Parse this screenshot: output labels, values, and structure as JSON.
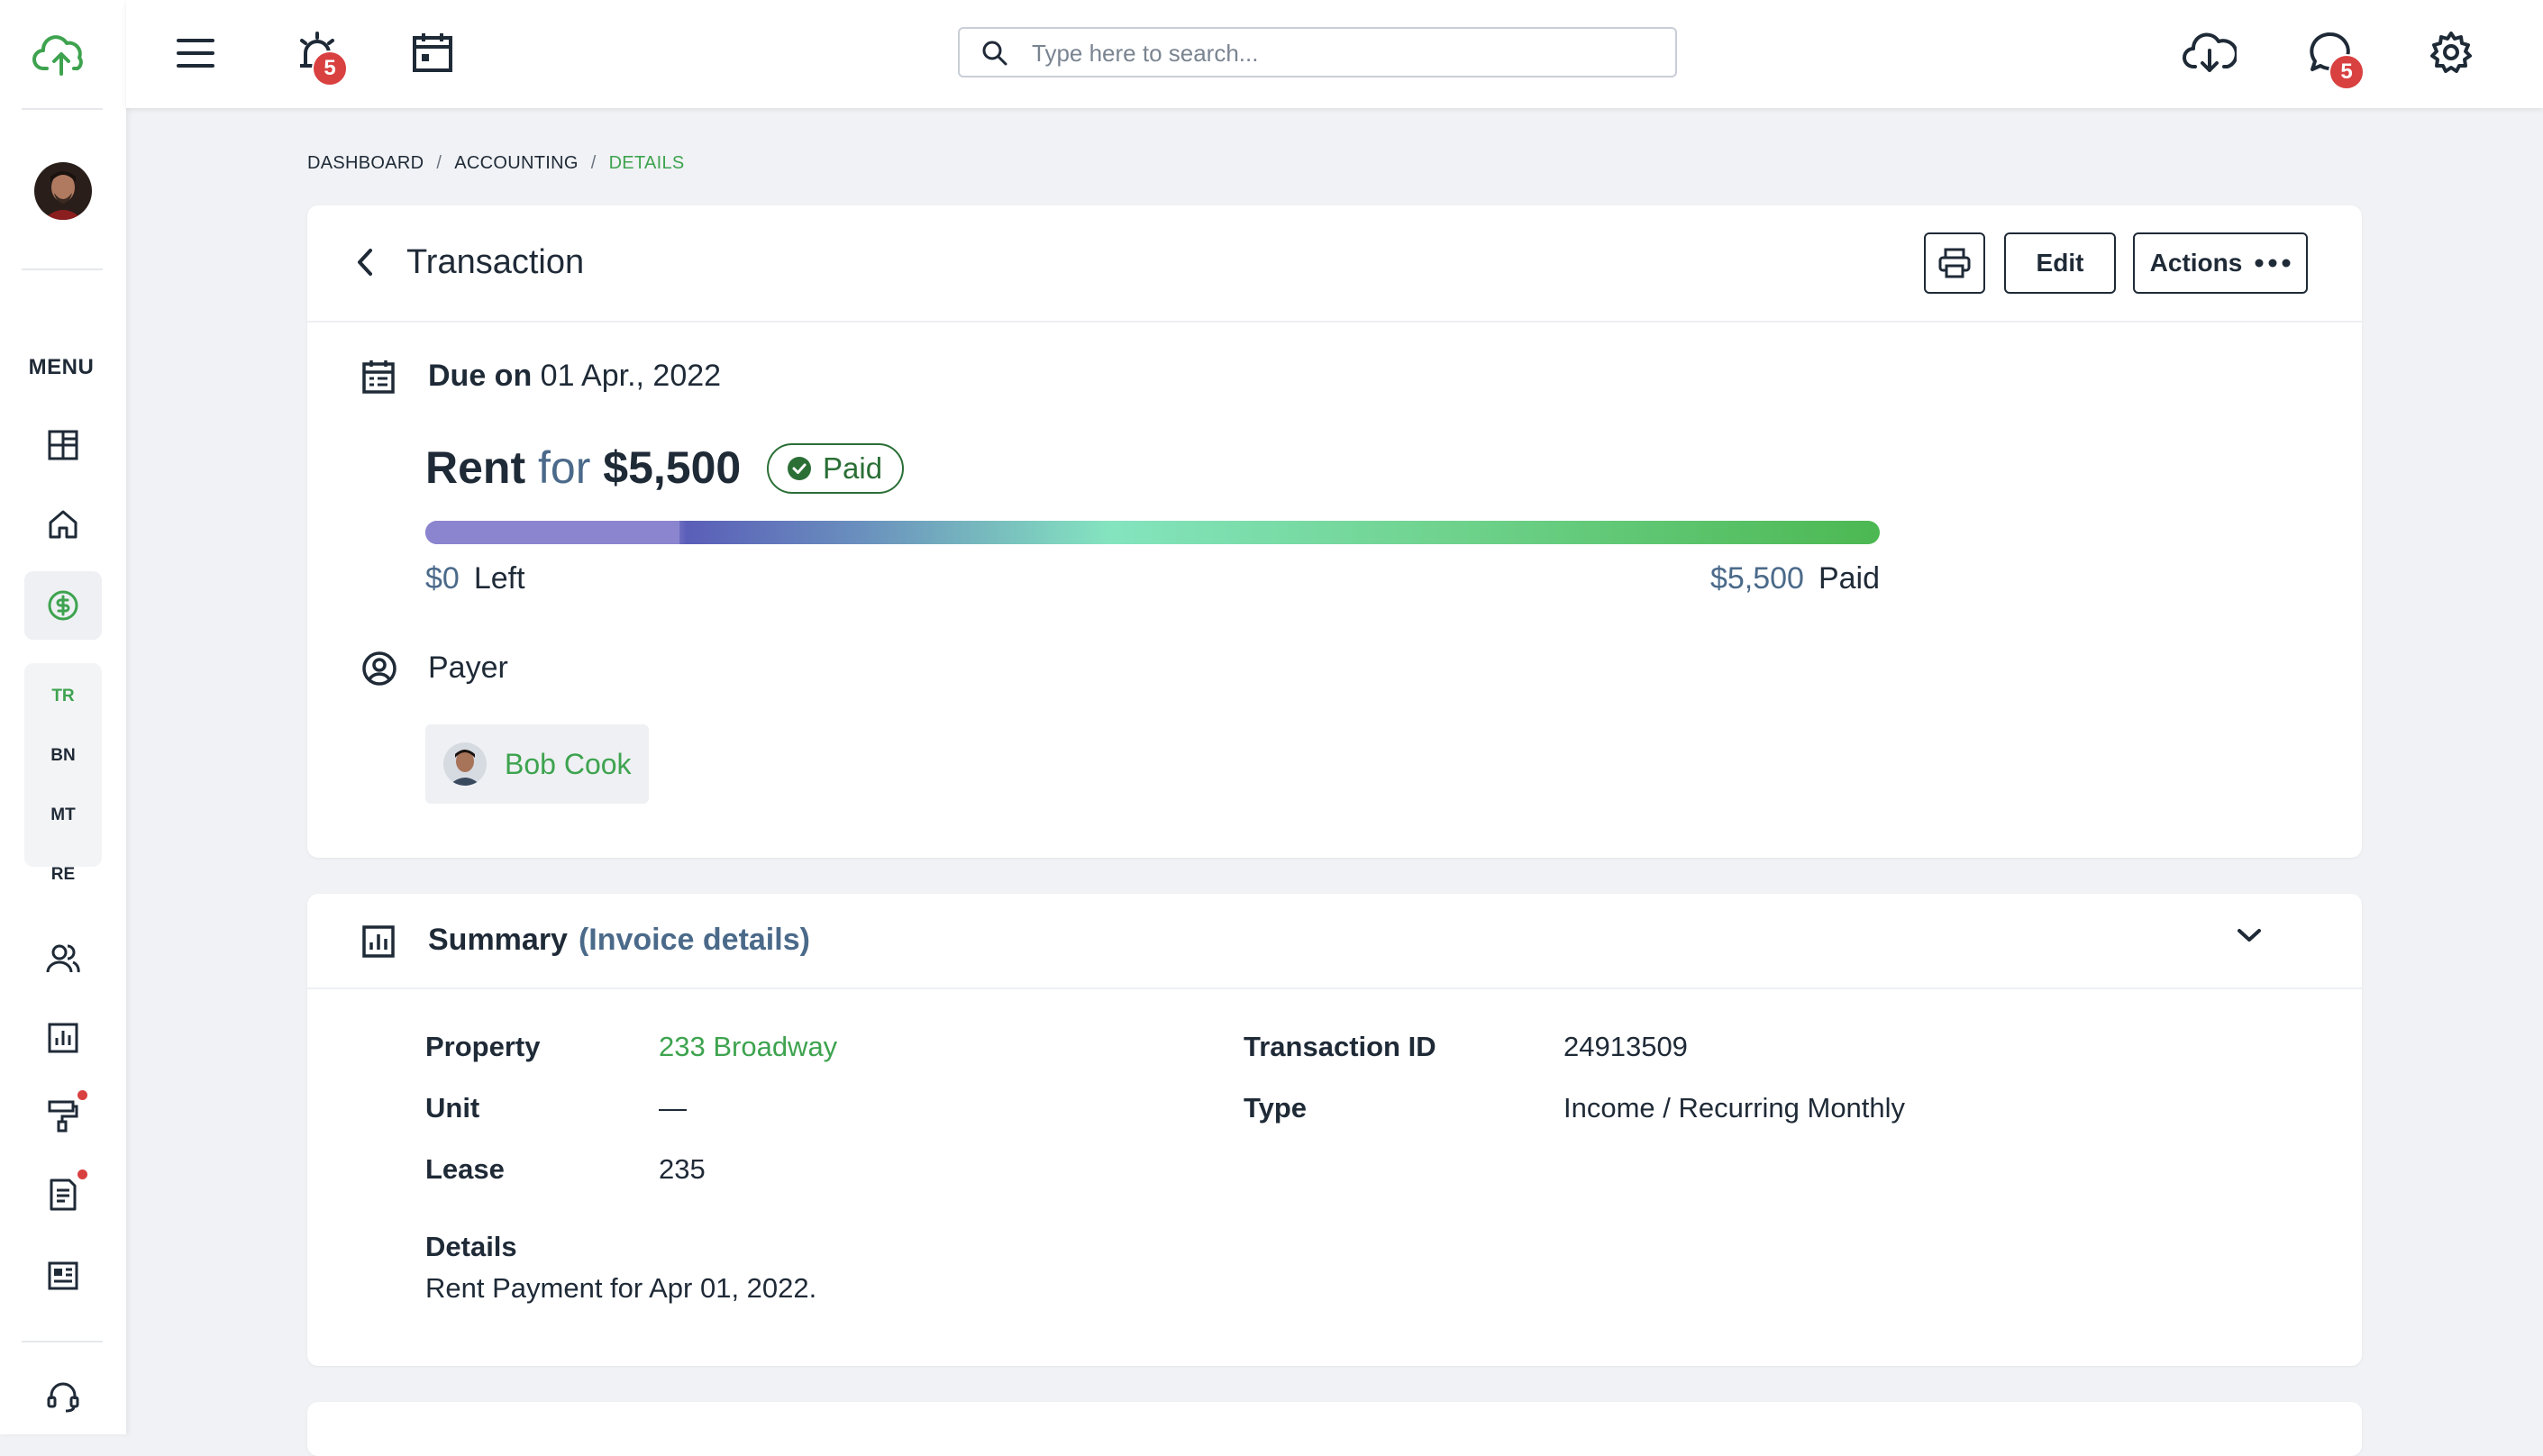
{
  "sidebar": {
    "menu_label": "MENU",
    "sub_items": [
      "TR",
      "BN",
      "MT",
      "RE"
    ]
  },
  "topbar": {
    "search_placeholder": "Type here to search...",
    "alerts_count": "5",
    "messages_count": "5"
  },
  "breadcrumb": [
    "DASHBOARD",
    "ACCOUNTING",
    "DETAILS"
  ],
  "transaction": {
    "title": "Transaction",
    "edit_label": "Edit",
    "actions_label": "Actions",
    "due_prefix": "Due on",
    "due_date": "01 Apr., 2022",
    "rent_label": "Rent",
    "for_label": "for",
    "amount": "$5,500",
    "status": "Paid",
    "left_amount": "$0",
    "left_label": "Left",
    "paid_amount": "$5,500",
    "paid_label": "Paid",
    "progress_percent": 100,
    "payer_label": "Payer",
    "payer_name": "Bob Cook"
  },
  "summary": {
    "title": "Summary",
    "subtitle": "(Invoice details)",
    "property_label": "Property",
    "property_value": "233 Broadway",
    "unit_label": "Unit",
    "unit_value": "—",
    "lease_label": "Lease",
    "lease_value": "235",
    "transaction_id_label": "Transaction ID",
    "transaction_id_value": "24913509",
    "type_label": "Type",
    "type_value": "Income / Recurring Monthly",
    "details_label": "Details",
    "details_value": "Rent Payment for Apr 01, 2022."
  },
  "colors": {
    "accent_green": "#3ea34f",
    "badge_red": "#d94040",
    "text_dark": "#1f2a37",
    "muted_blue": "#4b6a8a"
  }
}
